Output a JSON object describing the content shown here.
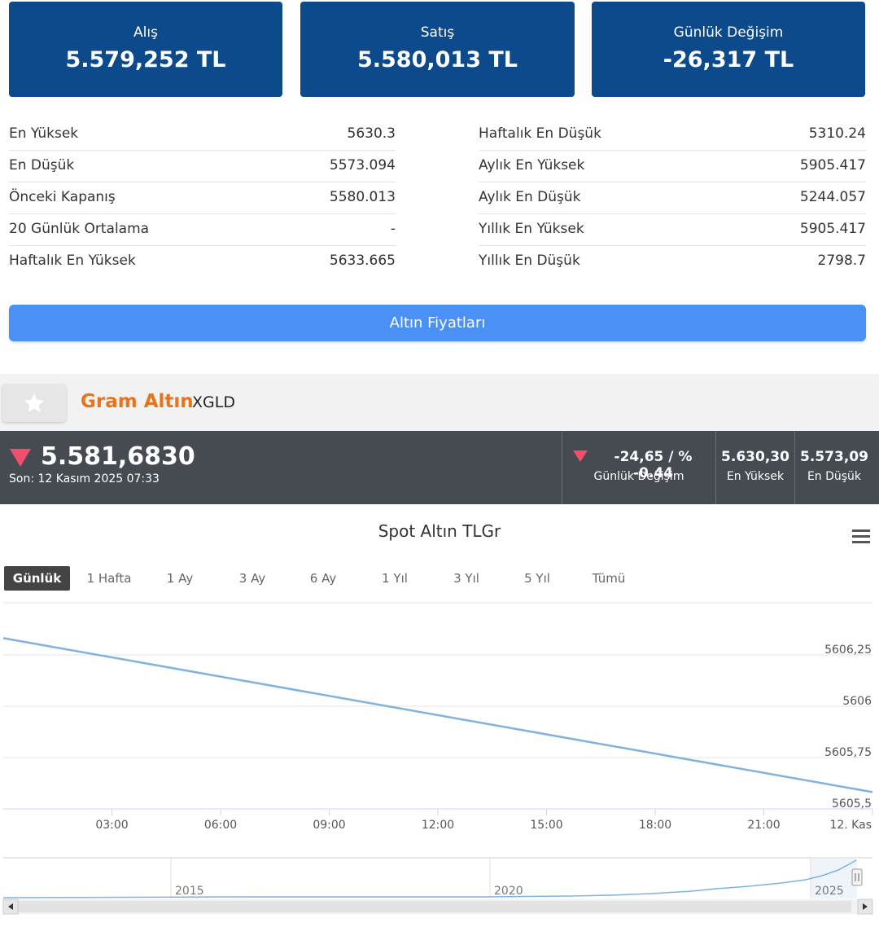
{
  "cards": [
    {
      "label": "Alış",
      "value": "5.579,252 TL"
    },
    {
      "label": "Satış",
      "value": "5.580,013 TL"
    },
    {
      "label": "Günlük Değişim",
      "value": "-26,317 TL"
    }
  ],
  "stats_left": [
    {
      "label": "En Yüksek",
      "value": "5630.3"
    },
    {
      "label": "En Düşük",
      "value": "5573.094"
    },
    {
      "label": "Önceki Kapanış",
      "value": "5580.013"
    },
    {
      "label": "20 Günlük Ortalama",
      "value": "-"
    },
    {
      "label": "Haftalık En Yüksek",
      "value": "5633.665"
    }
  ],
  "stats_right": [
    {
      "label": "Haftalık En Düşük",
      "value": "5310.24"
    },
    {
      "label": "Aylık En Yüksek",
      "value": "5905.417"
    },
    {
      "label": "Aylık En Düşük",
      "value": "5244.057"
    },
    {
      "label": "Yıllık En Yüksek",
      "value": "5905.417"
    },
    {
      "label": "Yıllık En Düşük",
      "value": "2798.7"
    }
  ],
  "gold_prices_button": "Altın Fiyatları",
  "instrument": {
    "name": "Gram Altın",
    "code": "XGLD"
  },
  "quote": {
    "price": "5.581,6830",
    "last_update": "Son: 12 Kasım 2025 07:33",
    "change_value": "-24,65 / % -0.44",
    "change_label": "Günlük Değişim",
    "high_value": "5.630,30",
    "high_label": "En Yüksek",
    "low_value": "5.573,09",
    "low_label": "En Düşük",
    "down_color": "#f0506e"
  },
  "range_buttons": [
    "Günlük",
    "1 Hafta",
    "1 Ay",
    "3 Ay",
    "6 Ay",
    "1 Yıl",
    "3 Yıl",
    "5 Yıl",
    "Tümü"
  ],
  "range_selected": "Günlük",
  "chart_data": {
    "type": "line",
    "title": "Spot Altın TLGr",
    "x_ticks": [
      "03:00",
      "06:00",
      "09:00",
      "12:00",
      "15:00",
      "18:00",
      "21:00",
      "12. Kas"
    ],
    "y_ticks": [
      "5606,25",
      "5606",
      "5605,75",
      "5605,5"
    ],
    "ylim": [
      5605.5,
      5606.25
    ],
    "series": [
      {
        "x": [
          "00:00",
          "24:00"
        ],
        "values": [
          5606.3,
          5605.55
        ]
      }
    ],
    "line_color": "#7fb2dd",
    "grid": true,
    "navigator": {
      "labels": [
        "2015",
        "2020",
        "2025"
      ]
    }
  }
}
